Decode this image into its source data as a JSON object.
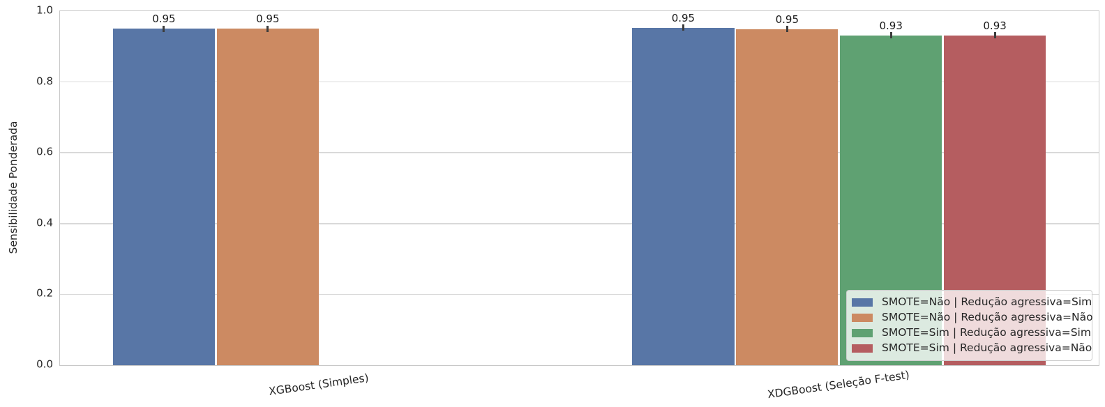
{
  "chart_data": {
    "type": "bar",
    "title": "",
    "xlabel": "",
    "ylabel": "Sensibilidade Ponderada",
    "categories": [
      "XGBoost (Simples)",
      "XDGBoost (Seleção F-test)"
    ],
    "series": [
      {
        "name": "SMOTE=Não | Redução agressiva=Sim",
        "color": "#5876A6",
        "values": [
          0.95,
          0.953
        ],
        "labels": [
          "0.95",
          "0.95"
        ]
      },
      {
        "name": "SMOTE=Não | Redução agressiva=Não",
        "color": "#CC8A62",
        "values": [
          0.95,
          0.949
        ],
        "labels": [
          "0.95",
          "0.95"
        ]
      },
      {
        "name": "SMOTE=Sim | Redução agressiva=Sim",
        "color": "#5FA172",
        "values": [
          null,
          0.932
        ],
        "labels": [
          null,
          "0.93"
        ]
      },
      {
        "name": "SMOTE=Sim | Redução agressiva=Não",
        "color": "#B55D60",
        "values": [
          null,
          0.932
        ],
        "labels": [
          null,
          "0.93"
        ]
      }
    ],
    "ylim": [
      0.0,
      1.0
    ],
    "yticks": [
      0.0,
      0.2,
      0.4,
      0.6,
      0.8,
      1.0
    ],
    "ytick_labels": [
      "0.0",
      "0.2",
      "0.4",
      "0.6",
      "0.8",
      "1.0"
    ],
    "grid": "horizontal",
    "error_bars": true,
    "legend_position": "lower right",
    "bar_group_width_fraction": 0.8
  }
}
